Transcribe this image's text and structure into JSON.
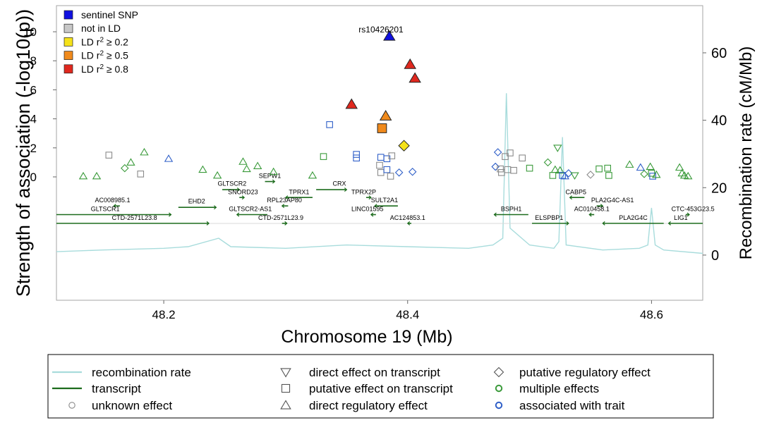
{
  "chart_data": {
    "type": "scatter",
    "title": "",
    "xlabel": "Chromosome 19 (Mb)",
    "ylabel": "Strength of association (-log10(p))",
    "y2label": "Recombination rate (cM/Mb)",
    "xlim": [
      48.112,
      48.642
    ],
    "ylim": [
      -8.5,
      11.8
    ],
    "y2lim": [
      -13.4,
      74.0
    ],
    "xticks": [
      48.2,
      48.4,
      48.6
    ],
    "xtick_labels": [
      "48.2",
      "48.4",
      "48.6"
    ],
    "yticks": [
      0,
      2,
      4,
      6,
      8,
      10
    ],
    "ytick_labels": [
      "0",
      "2",
      "4",
      "6",
      "8",
      "10"
    ],
    "y2ticks": [
      0,
      20,
      40,
      60
    ],
    "y2tick_labels": [
      "0",
      "20",
      "40",
      "60"
    ],
    "grid": false,
    "legend_position": "top-left",
    "colors": {
      "sentinel": "#1010e0",
      "not_ld": "#c8c8c8",
      "ld02": "#f5e21a",
      "ld05": "#f08a1c",
      "ld08": "#e0281e",
      "green": "#3a9a3a",
      "blue": "#2f5fc8",
      "grey": "#8a8a8a",
      "recomb": "#a8dcdc",
      "transcript": "#1c6b1c"
    },
    "ld_legend": [
      {
        "label": "sentinel SNP",
        "fill": "sentinel"
      },
      {
        "label": "not in LD",
        "fill": "not_ld"
      },
      {
        "label": "LD r",
        "sup": "2",
        "suffix": " ≥ 0.2",
        "fill": "ld02"
      },
      {
        "label": "LD r",
        "sup": "2",
        "suffix": " ≥ 0.5",
        "fill": "ld05"
      },
      {
        "label": "LD r",
        "sup": "2",
        "suffix": " ≥ 0.8",
        "fill": "ld08"
      }
    ],
    "annotations": [
      {
        "text": "rs10426201",
        "x": 48.385,
        "y": 10.5
      }
    ],
    "points": [
      {
        "x": 48.134,
        "y": 0.05,
        "shape": "triangle-up",
        "color": "green"
      },
      {
        "x": 48.145,
        "y": 0.05,
        "shape": "triangle-up",
        "color": "green"
      },
      {
        "x": 48.155,
        "y": 1.5,
        "shape": "square",
        "color": "grey"
      },
      {
        "x": 48.168,
        "y": 0.6,
        "shape": "diamond",
        "color": "green"
      },
      {
        "x": 48.173,
        "y": 1.0,
        "shape": "triangle-up",
        "color": "green"
      },
      {
        "x": 48.181,
        "y": 0.2,
        "shape": "square",
        "color": "grey"
      },
      {
        "x": 48.184,
        "y": 1.7,
        "shape": "triangle-up",
        "color": "green"
      },
      {
        "x": 48.204,
        "y": 1.25,
        "shape": "triangle-up",
        "color": "blue"
      },
      {
        "x": 48.232,
        "y": 0.5,
        "shape": "triangle-up",
        "color": "green"
      },
      {
        "x": 48.244,
        "y": 0.1,
        "shape": "triangle-up",
        "color": "green"
      },
      {
        "x": 48.265,
        "y": 1.05,
        "shape": "triangle-up",
        "color": "green"
      },
      {
        "x": 48.268,
        "y": 0.55,
        "shape": "triangle-up",
        "color": "green"
      },
      {
        "x": 48.277,
        "y": 0.75,
        "shape": "triangle-up",
        "color": "green"
      },
      {
        "x": 48.29,
        "y": 0.35,
        "shape": "triangle-up",
        "color": "green"
      },
      {
        "x": 48.322,
        "y": 0.1,
        "shape": "triangle-up",
        "color": "green"
      },
      {
        "x": 48.331,
        "y": 1.4,
        "shape": "square",
        "color": "green"
      },
      {
        "x": 48.336,
        "y": 3.6,
        "shape": "square",
        "color": "blue"
      },
      {
        "x": 48.354,
        "y": 5.0,
        "shape": "triangle-up",
        "color": "ld08"
      },
      {
        "x": 48.358,
        "y": 1.3,
        "shape": "square",
        "color": "blue"
      },
      {
        "x": 48.358,
        "y": 1.55,
        "shape": "square",
        "color": "blue"
      },
      {
        "x": 48.377,
        "y": 0.8,
        "shape": "square",
        "color": "grey"
      },
      {
        "x": 48.378,
        "y": 0.3,
        "shape": "square",
        "color": "grey"
      },
      {
        "x": 48.378,
        "y": 1.35,
        "shape": "square",
        "color": "blue"
      },
      {
        "x": 48.379,
        "y": 3.35,
        "shape": "square",
        "color": "ld05"
      },
      {
        "x": 48.382,
        "y": 4.2,
        "shape": "triangle-up",
        "color": "ld05"
      },
      {
        "x": 48.383,
        "y": 0.5,
        "shape": "square",
        "color": "blue"
      },
      {
        "x": 48.383,
        "y": 1.25,
        "shape": "square",
        "color": "blue"
      },
      {
        "x": 48.385,
        "y": 9.7,
        "shape": "triangle-up",
        "color": "sentinel"
      },
      {
        "x": 48.386,
        "y": 0.05,
        "shape": "square",
        "color": "grey"
      },
      {
        "x": 48.387,
        "y": 1.45,
        "shape": "square",
        "color": "grey"
      },
      {
        "x": 48.393,
        "y": 0.3,
        "shape": "diamond",
        "color": "blue"
      },
      {
        "x": 48.397,
        "y": 2.15,
        "shape": "diamond",
        "color": "ld02"
      },
      {
        "x": 48.402,
        "y": 7.75,
        "shape": "triangle-up",
        "color": "ld08"
      },
      {
        "x": 48.404,
        "y": 0.35,
        "shape": "diamond",
        "color": "blue"
      },
      {
        "x": 48.406,
        "y": 6.8,
        "shape": "triangle-up",
        "color": "ld08"
      },
      {
        "x": 48.472,
        "y": 0.7,
        "shape": "diamond",
        "color": "blue"
      },
      {
        "x": 48.474,
        "y": 1.7,
        "shape": "diamond",
        "color": "blue"
      },
      {
        "x": 48.476,
        "y": 0.55,
        "shape": "square",
        "color": "grey"
      },
      {
        "x": 48.477,
        "y": 0.3,
        "shape": "square",
        "color": "grey"
      },
      {
        "x": 48.48,
        "y": 1.4,
        "shape": "square",
        "color": "grey"
      },
      {
        "x": 48.482,
        "y": 0.5,
        "shape": "square",
        "color": "grey"
      },
      {
        "x": 48.484,
        "y": 1.65,
        "shape": "square",
        "color": "grey"
      },
      {
        "x": 48.487,
        "y": 0.45,
        "shape": "square",
        "color": "grey"
      },
      {
        "x": 48.494,
        "y": 1.3,
        "shape": "square",
        "color": "grey"
      },
      {
        "x": 48.5,
        "y": 0.6,
        "shape": "square",
        "color": "green"
      },
      {
        "x": 48.515,
        "y": 1.0,
        "shape": "diamond",
        "color": "green"
      },
      {
        "x": 48.519,
        "y": 0.1,
        "shape": "square",
        "color": "green"
      },
      {
        "x": 48.521,
        "y": 0.5,
        "shape": "triangle-up",
        "color": "green"
      },
      {
        "x": 48.523,
        "y": 2.0,
        "shape": "triangle-down",
        "color": "green"
      },
      {
        "x": 48.525,
        "y": 0.45,
        "shape": "triangle-up",
        "color": "green"
      },
      {
        "x": 48.527,
        "y": 0.1,
        "shape": "square",
        "color": "blue"
      },
      {
        "x": 48.529,
        "y": 0.05,
        "shape": "triangle-up",
        "color": "blue"
      },
      {
        "x": 48.532,
        "y": 0.25,
        "shape": "diamond",
        "color": "blue"
      },
      {
        "x": 48.537,
        "y": 0.1,
        "shape": "triangle-down",
        "color": "green"
      },
      {
        "x": 48.55,
        "y": 0.15,
        "shape": "diamond",
        "color": "grey"
      },
      {
        "x": 48.557,
        "y": 0.55,
        "shape": "square",
        "color": "green"
      },
      {
        "x": 48.564,
        "y": 0.6,
        "shape": "square",
        "color": "green"
      },
      {
        "x": 48.565,
        "y": 0.1,
        "shape": "square",
        "color": "green"
      },
      {
        "x": 48.582,
        "y": 0.85,
        "shape": "triangle-up",
        "color": "green"
      },
      {
        "x": 48.591,
        "y": 0.65,
        "shape": "triangle-up",
        "color": "blue"
      },
      {
        "x": 48.594,
        "y": 0.2,
        "shape": "diamond",
        "color": "green"
      },
      {
        "x": 48.599,
        "y": 0.7,
        "shape": "triangle-up",
        "color": "green"
      },
      {
        "x": 48.6,
        "y": 0.25,
        "shape": "square",
        "color": "green"
      },
      {
        "x": 48.601,
        "y": 0.05,
        "shape": "square",
        "color": "blue"
      },
      {
        "x": 48.604,
        "y": 0.15,
        "shape": "triangle-up",
        "color": "green"
      },
      {
        "x": 48.623,
        "y": 0.65,
        "shape": "triangle-up",
        "color": "green"
      },
      {
        "x": 48.625,
        "y": 0.25,
        "shape": "triangle-up",
        "color": "green"
      },
      {
        "x": 48.627,
        "y": 0.1,
        "shape": "triangle-up",
        "color": "green"
      },
      {
        "x": 48.63,
        "y": 0.05,
        "shape": "triangle-up",
        "color": "green"
      }
    ],
    "recombination": [
      [
        48.112,
        1.0
      ],
      [
        48.15,
        1.5
      ],
      [
        48.2,
        2.0
      ],
      [
        48.22,
        2.5
      ],
      [
        48.245,
        5.0
      ],
      [
        48.255,
        2.5
      ],
      [
        48.3,
        2.0
      ],
      [
        48.35,
        3.0
      ],
      [
        48.4,
        2.5
      ],
      [
        48.45,
        2.0
      ],
      [
        48.47,
        3.0
      ],
      [
        48.478,
        5.0
      ],
      [
        48.481,
        48.0
      ],
      [
        48.484,
        8.0
      ],
      [
        48.5,
        3.0
      ],
      [
        48.52,
        2.0
      ],
      [
        48.524,
        4.0
      ],
      [
        48.527,
        35.0
      ],
      [
        48.53,
        3.0
      ],
      [
        48.56,
        1.5
      ],
      [
        48.59,
        2.0
      ],
      [
        48.597,
        3.0
      ],
      [
        48.6,
        14.0
      ],
      [
        48.603,
        3.0
      ],
      [
        48.61,
        1.5
      ],
      [
        48.642,
        0.5
      ]
    ],
    "transcripts": [
      {
        "name": "GLTSCR2",
        "start": 48.248,
        "end": 48.262,
        "dir": "+",
        "y": -0.88,
        "label_x": 48.256,
        "label_y": -0.62
      },
      {
        "name": "SEPW1",
        "start": 48.283,
        "end": 48.291,
        "dir": "+",
        "y": -0.32,
        "label_x": 48.287,
        "label_y": -0.08
      },
      {
        "name": "SNORD23",
        "start": 48.262,
        "end": 48.266,
        "dir": "+",
        "y": -1.42,
        "label_x": 48.265,
        "label_y": -1.18
      },
      {
        "name": "CRX",
        "start": 48.325,
        "end": 48.35,
        "dir": "+",
        "y": -0.88,
        "label_x": 48.344,
        "label_y": -0.62
      },
      {
        "name": "TPRX1",
        "start": 48.3,
        "end": 48.322,
        "dir": "-",
        "y": -1.42,
        "label_x": 48.311,
        "label_y": -1.18
      },
      {
        "name": "TPRX2P",
        "start": 48.366,
        "end": 48.37,
        "dir": "+",
        "y": -1.42,
        "label_x": 48.364,
        "label_y": -1.18
      },
      {
        "name": "AC008985.1",
        "start": 48.159,
        "end": 48.164,
        "dir": "-",
        "y": -2.0,
        "label_x": 48.158,
        "label_y": -1.76
      },
      {
        "name": "RPL23AP80",
        "start": 48.297,
        "end": 48.302,
        "dir": "-",
        "y": -2.0,
        "label_x": 48.299,
        "label_y": -1.76
      },
      {
        "name": "SULT2A1",
        "start": 48.373,
        "end": 48.392,
        "dir": "-",
        "y": -2.0,
        "label_x": 48.381,
        "label_y": -1.76
      },
      {
        "name": "EHD2",
        "start": 48.212,
        "end": 48.243,
        "dir": "+",
        "y": -2.1,
        "label_x": 48.227,
        "label_y": -1.82
      },
      {
        "name": "CABP5",
        "start": 48.533,
        "end": 48.545,
        "dir": "-",
        "y": -1.42,
        "label_x": 48.538,
        "label_y": -1.18
      },
      {
        "name": "PLA2G4C-AS1",
        "start": 48.555,
        "end": 48.56,
        "dir": "+",
        "y": -2.0,
        "label_x": 48.568,
        "label_y": -1.76
      },
      {
        "name": "GLTSCR1",
        "start": 48.112,
        "end": 48.206,
        "dir": "+",
        "y": -2.6,
        "label_x": 48.152,
        "label_y": -2.36
      },
      {
        "name": "GLTSCR2-AS1",
        "start": 48.26,
        "end": 48.285,
        "dir": "-",
        "y": -2.6,
        "label_x": 48.271,
        "label_y": -2.36
      },
      {
        "name": "LINC01595",
        "start": 48.37,
        "end": 48.374,
        "dir": "-",
        "y": -2.6,
        "label_x": 48.367,
        "label_y": -2.36
      },
      {
        "name": "BSPH1",
        "start": 48.471,
        "end": 48.499,
        "dir": "-",
        "y": -2.6,
        "label_x": 48.485,
        "label_y": -2.36
      },
      {
        "name": "AC010458.1",
        "start": 48.549,
        "end": 48.553,
        "dir": "-",
        "y": -2.6,
        "label_x": 48.551,
        "label_y": -2.36
      },
      {
        "name": "CTC-453G23.5",
        "start": 48.628,
        "end": 48.631,
        "dir": "+",
        "y": -2.6,
        "label_x": 48.634,
        "label_y": -2.36
      },
      {
        "name": "CTD-2571L23.8",
        "start": 48.112,
        "end": 48.237,
        "dir": "+",
        "y": -3.2,
        "label_x": 48.176,
        "label_y": -2.96
      },
      {
        "name": "CTD-2571L23.9",
        "start": 48.297,
        "end": 48.301,
        "dir": "+",
        "y": -3.2,
        "label_x": 48.296,
        "label_y": -2.96
      },
      {
        "name": "AC124853.1",
        "start": 48.4,
        "end": 48.403,
        "dir": "-",
        "y": -3.2,
        "label_x": 48.4,
        "label_y": -2.96
      },
      {
        "name": "ELSPBP1",
        "start": 48.502,
        "end": 48.532,
        "dir": "+",
        "y": -3.2,
        "label_x": 48.516,
        "label_y": -2.96
      },
      {
        "name": "PLA2G4C",
        "start": 48.56,
        "end": 48.61,
        "dir": "-",
        "y": -3.2,
        "label_x": 48.585,
        "label_y": -2.96
      },
      {
        "name": "LIG1",
        "start": 48.614,
        "end": 48.642,
        "dir": "-",
        "y": -3.2,
        "label_x": 48.624,
        "label_y": -2.96
      }
    ]
  },
  "bottom_legend": [
    {
      "symbol": "line",
      "color": "recomb",
      "label": "recombination rate"
    },
    {
      "symbol": "triangle-down",
      "color": "grey",
      "label": "direct effect on transcript"
    },
    {
      "symbol": "diamond",
      "color": "grey",
      "label": "putative regulatory effect"
    },
    {
      "symbol": "line",
      "color": "transcript",
      "label": "transcript"
    },
    {
      "symbol": "square",
      "color": "grey",
      "label": "putative effect on transcript"
    },
    {
      "symbol": "circle",
      "color": "green",
      "label": "multiple effects"
    },
    {
      "symbol": "circle",
      "color": "grey",
      "label": "unknown effect"
    },
    {
      "symbol": "triangle-up",
      "color": "grey",
      "label": "direct regulatory effect"
    },
    {
      "symbol": "circle",
      "color": "blue",
      "label": "associated with trait"
    }
  ]
}
